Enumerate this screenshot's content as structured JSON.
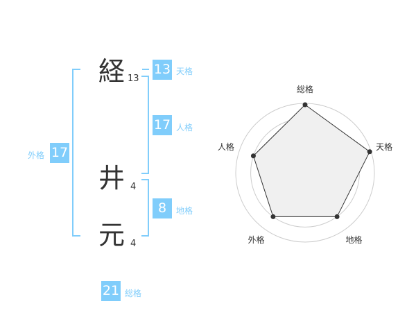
{
  "name": {
    "chars": [
      {
        "char": "経",
        "strokes": "13"
      },
      {
        "char": "井",
        "strokes": "4"
      },
      {
        "char": "元",
        "strokes": "4"
      }
    ]
  },
  "kaku": {
    "tenkaku": {
      "label": "天格",
      "value": "13"
    },
    "jinkaku": {
      "label": "人格",
      "value": "17"
    },
    "chikaku": {
      "label": "地格",
      "value": "8"
    },
    "gaikaku": {
      "label": "外格",
      "value": "17"
    },
    "soukaku": {
      "label": "総格",
      "value": "21"
    }
  },
  "colors": {
    "accent": "#80cdfb",
    "radar_fill": "#f0f0f0",
    "radar_line": "#333333",
    "grid": "#cccccc"
  },
  "chart_data": {
    "type": "radar",
    "categories": [
      "総格",
      "天格",
      "地格",
      "外格",
      "人格"
    ],
    "values": [
      5,
      5,
      4,
      4,
      4
    ],
    "rlim": [
      0,
      5
    ],
    "grid": true
  }
}
